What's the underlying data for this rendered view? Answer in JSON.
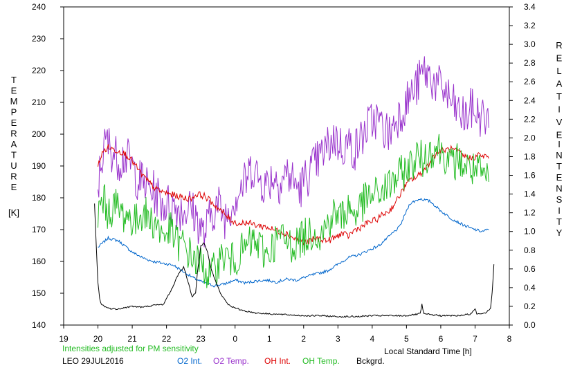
{
  "chart_data": {
    "type": "line",
    "left_axis": {
      "label_letters": [
        "T",
        "E",
        "M",
        "P",
        "E",
        "R",
        "A",
        "T",
        "U",
        "R",
        "E"
      ],
      "unit": "[K]",
      "ylim": [
        140,
        240
      ],
      "ticks": [
        140,
        150,
        160,
        170,
        180,
        190,
        200,
        210,
        220,
        230,
        240
      ]
    },
    "right_axis": {
      "label_letters": [
        "R",
        "E",
        "L",
        "A",
        "T",
        "I",
        "V",
        "E",
        "I",
        "N",
        "T",
        "E",
        "N",
        "S",
        "I",
        "T",
        "Y"
      ],
      "ylim": [
        0.0,
        3.4
      ],
      "ticks": [
        "0.0",
        "0.2",
        "0.4",
        "0.6",
        "0.8",
        "1.0",
        "1.2",
        "1.4",
        "1.6",
        "1.8",
        "2.0",
        "2.2",
        "2.4",
        "2.6",
        "2.8",
        "3.0",
        "3.2",
        "3.4"
      ]
    },
    "x_axis": {
      "label": "Local Standard Time [h]",
      "ticks": [
        "19",
        "20",
        "21",
        "22",
        "23",
        "0",
        "1",
        "2",
        "3",
        "4",
        "5",
        "6",
        "7",
        "8"
      ]
    },
    "note": "Intensities adjusted for PM sensitivity",
    "station": "LEO 29JUL2016",
    "legend": [
      {
        "name": "O2 Int.",
        "color": "#0066cc"
      },
      {
        "name": "O2 Temp.",
        "color": "#9933cc"
      },
      {
        "name": "OH Int.",
        "color": "#dd0000"
      },
      {
        "name": "OH Temp.",
        "color": "#22bb22"
      },
      {
        "name": "Bckgrd.",
        "color": "#000000"
      }
    ],
    "series": [
      {
        "name": "O2 Int.",
        "axis": "right",
        "color": "#0066cc",
        "points": [
          [
            20.0,
            0.83
          ],
          [
            20.3,
            0.93
          ],
          [
            20.6,
            0.9
          ],
          [
            21.0,
            0.78
          ],
          [
            21.3,
            0.72
          ],
          [
            21.6,
            0.68
          ],
          [
            21.9,
            0.66
          ],
          [
            22.2,
            0.64
          ],
          [
            22.5,
            0.57
          ],
          [
            22.8,
            0.5
          ],
          [
            23.1,
            0.45
          ],
          [
            23.4,
            0.42
          ],
          [
            23.7,
            0.44
          ],
          [
            24.0,
            0.48
          ],
          [
            24.3,
            0.45
          ],
          [
            24.6,
            0.47
          ],
          [
            24.9,
            0.48
          ],
          [
            25.2,
            0.46
          ],
          [
            25.5,
            0.49
          ],
          [
            25.8,
            0.48
          ],
          [
            26.1,
            0.52
          ],
          [
            26.4,
            0.55
          ],
          [
            26.7,
            0.58
          ],
          [
            27.0,
            0.65
          ],
          [
            27.3,
            0.72
          ],
          [
            27.6,
            0.75
          ],
          [
            27.9,
            0.8
          ],
          [
            28.2,
            0.85
          ],
          [
            28.5,
            0.95
          ],
          [
            28.8,
            1.05
          ],
          [
            29.1,
            1.3
          ],
          [
            29.4,
            1.35
          ],
          [
            29.7,
            1.32
          ],
          [
            30.0,
            1.22
          ],
          [
            30.3,
            1.14
          ],
          [
            30.6,
            1.08
          ],
          [
            30.9,
            1.03
          ],
          [
            31.2,
            1.0
          ],
          [
            31.4,
            1.02
          ]
        ]
      },
      {
        "name": "O2 Temp.",
        "axis": "left",
        "color": "#9933cc",
        "points": [
          [
            20.0,
            183
          ],
          [
            20.1,
            192
          ],
          [
            20.25,
            198
          ],
          [
            20.4,
            195
          ],
          [
            20.6,
            192
          ],
          [
            20.8,
            193
          ],
          [
            21.0,
            190
          ],
          [
            21.15,
            186
          ],
          [
            21.3,
            185
          ],
          [
            21.5,
            183
          ],
          [
            21.7,
            181
          ],
          [
            21.9,
            178
          ],
          [
            22.1,
            178
          ],
          [
            22.3,
            177
          ],
          [
            22.5,
            176
          ],
          [
            22.7,
            177
          ],
          [
            22.9,
            173
          ],
          [
            23.1,
            168
          ],
          [
            23.3,
            175
          ],
          [
            23.5,
            178
          ],
          [
            23.7,
            174
          ],
          [
            23.9,
            178
          ],
          [
            24.1,
            182
          ],
          [
            24.3,
            185
          ],
          [
            24.5,
            190
          ],
          [
            24.7,
            186
          ],
          [
            24.9,
            184
          ],
          [
            25.1,
            187
          ],
          [
            25.3,
            185
          ],
          [
            25.5,
            188
          ],
          [
            25.7,
            185
          ],
          [
            25.9,
            183
          ],
          [
            26.1,
            187
          ],
          [
            26.3,
            190
          ],
          [
            26.5,
            193
          ],
          [
            26.7,
            196
          ],
          [
            26.9,
            199
          ],
          [
            27.1,
            196
          ],
          [
            27.3,
            197
          ],
          [
            27.5,
            195
          ],
          [
            27.7,
            199
          ],
          [
            27.9,
            203
          ],
          [
            28.1,
            205
          ],
          [
            28.3,
            202
          ],
          [
            28.5,
            200
          ],
          [
            28.7,
            205
          ],
          [
            28.9,
            208
          ],
          [
            29.1,
            212
          ],
          [
            29.3,
            215
          ],
          [
            29.5,
            220
          ],
          [
            29.7,
            218
          ],
          [
            29.9,
            215
          ],
          [
            30.1,
            214
          ],
          [
            30.3,
            210
          ],
          [
            30.5,
            207
          ],
          [
            30.7,
            205
          ],
          [
            30.9,
            208
          ],
          [
            31.1,
            206
          ],
          [
            31.3,
            205
          ],
          [
            31.4,
            202
          ]
        ]
      },
      {
        "name": "OH Int.",
        "axis": "right",
        "color": "#dd0000",
        "points": [
          [
            20.0,
            1.72
          ],
          [
            20.15,
            1.85
          ],
          [
            20.3,
            1.9
          ],
          [
            20.5,
            1.87
          ],
          [
            20.7,
            1.85
          ],
          [
            20.9,
            1.8
          ],
          [
            21.1,
            1.7
          ],
          [
            21.3,
            1.6
          ],
          [
            21.5,
            1.52
          ],
          [
            21.7,
            1.45
          ],
          [
            21.9,
            1.42
          ],
          [
            22.1,
            1.4
          ],
          [
            22.3,
            1.38
          ],
          [
            22.5,
            1.36
          ],
          [
            22.7,
            1.35
          ],
          [
            22.9,
            1.4
          ],
          [
            23.1,
            1.38
          ],
          [
            23.3,
            1.32
          ],
          [
            23.5,
            1.25
          ],
          [
            23.7,
            1.18
          ],
          [
            23.9,
            1.12
          ],
          [
            24.1,
            1.08
          ],
          [
            24.3,
            1.1
          ],
          [
            24.5,
            1.08
          ],
          [
            24.7,
            1.06
          ],
          [
            24.9,
            1.05
          ],
          [
            25.1,
            1.02
          ],
          [
            25.3,
            1.0
          ],
          [
            25.5,
            0.98
          ],
          [
            25.7,
            0.93
          ],
          [
            25.9,
            0.9
          ],
          [
            26.1,
            0.88
          ],
          [
            26.3,
            0.92
          ],
          [
            26.5,
            0.92
          ],
          [
            26.7,
            0.9
          ],
          [
            26.9,
            0.93
          ],
          [
            27.1,
            0.98
          ],
          [
            27.3,
            0.95
          ],
          [
            27.5,
            1.02
          ],
          [
            27.7,
            1.05
          ],
          [
            27.9,
            1.1
          ],
          [
            28.1,
            1.12
          ],
          [
            28.3,
            1.18
          ],
          [
            28.5,
            1.22
          ],
          [
            28.7,
            1.32
          ],
          [
            28.9,
            1.45
          ],
          [
            29.1,
            1.55
          ],
          [
            29.3,
            1.58
          ],
          [
            29.5,
            1.65
          ],
          [
            29.7,
            1.75
          ],
          [
            29.9,
            1.85
          ],
          [
            30.1,
            1.87
          ],
          [
            30.3,
            1.88
          ],
          [
            30.5,
            1.85
          ],
          [
            30.7,
            1.8
          ],
          [
            30.9,
            1.78
          ],
          [
            31.1,
            1.82
          ],
          [
            31.3,
            1.8
          ],
          [
            31.4,
            1.78
          ]
        ]
      },
      {
        "name": "OH Temp.",
        "axis": "left",
        "color": "#22bb22",
        "points": [
          [
            20.0,
            175
          ],
          [
            20.15,
            180
          ],
          [
            20.3,
            175
          ],
          [
            20.5,
            178
          ],
          [
            20.7,
            175
          ],
          [
            20.9,
            174
          ],
          [
            21.1,
            172
          ],
          [
            21.3,
            176
          ],
          [
            21.5,
            173
          ],
          [
            21.7,
            172
          ],
          [
            21.9,
            168
          ],
          [
            22.1,
            170
          ],
          [
            22.3,
            166
          ],
          [
            22.5,
            165
          ],
          [
            22.7,
            162
          ],
          [
            22.9,
            160
          ],
          [
            23.1,
            158
          ],
          [
            23.3,
            155
          ],
          [
            23.5,
            160
          ],
          [
            23.7,
            162
          ],
          [
            23.9,
            160
          ],
          [
            24.1,
            162
          ],
          [
            24.3,
            164
          ],
          [
            24.5,
            166
          ],
          [
            24.7,
            165
          ],
          [
            24.9,
            162
          ],
          [
            25.1,
            165
          ],
          [
            25.3,
            168
          ],
          [
            25.5,
            166
          ],
          [
            25.7,
            165
          ],
          [
            25.9,
            167
          ],
          [
            26.1,
            168
          ],
          [
            26.3,
            170
          ],
          [
            26.5,
            168
          ],
          [
            26.7,
            172
          ],
          [
            26.9,
            175
          ],
          [
            27.1,
            174
          ],
          [
            27.3,
            177
          ],
          [
            27.5,
            175
          ],
          [
            27.7,
            178
          ],
          [
            27.9,
            180
          ],
          [
            28.1,
            181
          ],
          [
            28.3,
            182
          ],
          [
            28.5,
            184
          ],
          [
            28.7,
            186
          ],
          [
            28.9,
            188
          ],
          [
            29.1,
            190
          ],
          [
            29.3,
            193
          ],
          [
            29.5,
            192
          ],
          [
            29.7,
            195
          ],
          [
            29.9,
            196
          ],
          [
            30.1,
            194
          ],
          [
            30.3,
            190
          ],
          [
            30.5,
            192
          ],
          [
            30.7,
            190
          ],
          [
            30.9,
            189
          ],
          [
            31.1,
            188
          ],
          [
            31.3,
            186
          ],
          [
            31.4,
            185
          ]
        ]
      },
      {
        "name": "Bckgrd.",
        "axis": "right",
        "color": "#000000",
        "points": [
          [
            19.9,
            1.3
          ],
          [
            19.95,
            0.85
          ],
          [
            20.0,
            0.45
          ],
          [
            20.05,
            0.28
          ],
          [
            20.1,
            0.22
          ],
          [
            20.3,
            0.18
          ],
          [
            20.5,
            0.17
          ],
          [
            20.7,
            0.18
          ],
          [
            21.0,
            0.2
          ],
          [
            21.3,
            0.19
          ],
          [
            21.6,
            0.21
          ],
          [
            21.9,
            0.22
          ],
          [
            22.0,
            0.28
          ],
          [
            22.2,
            0.42
          ],
          [
            22.35,
            0.55
          ],
          [
            22.5,
            0.62
          ],
          [
            22.6,
            0.5
          ],
          [
            22.75,
            0.3
          ],
          [
            22.85,
            0.35
          ],
          [
            22.9,
            0.55
          ],
          [
            23.0,
            0.85
          ],
          [
            23.1,
            0.88
          ],
          [
            23.2,
            0.78
          ],
          [
            23.3,
            0.6
          ],
          [
            23.45,
            0.45
          ],
          [
            23.6,
            0.32
          ],
          [
            23.8,
            0.22
          ],
          [
            24.0,
            0.18
          ],
          [
            24.3,
            0.15
          ],
          [
            24.6,
            0.13
          ],
          [
            25.0,
            0.12
          ],
          [
            25.5,
            0.11
          ],
          [
            26.0,
            0.1
          ],
          [
            26.5,
            0.1
          ],
          [
            27.0,
            0.09
          ],
          [
            27.5,
            0.09
          ],
          [
            28.0,
            0.1
          ],
          [
            28.5,
            0.1
          ],
          [
            29.0,
            0.1
          ],
          [
            29.4,
            0.12
          ],
          [
            29.45,
            0.22
          ],
          [
            29.5,
            0.12
          ],
          [
            30.0,
            0.1
          ],
          [
            30.5,
            0.1
          ],
          [
            30.9,
            0.12
          ],
          [
            31.0,
            0.18
          ],
          [
            31.05,
            0.12
          ],
          [
            31.3,
            0.13
          ],
          [
            31.45,
            0.18
          ],
          [
            31.5,
            0.35
          ],
          [
            31.55,
            0.65
          ]
        ]
      }
    ]
  }
}
